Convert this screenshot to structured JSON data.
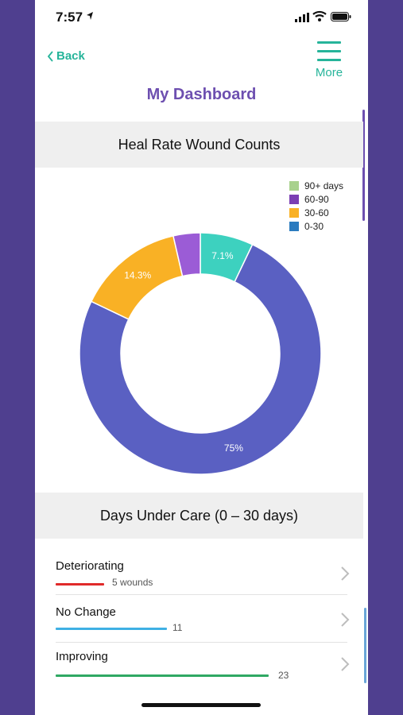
{
  "status_bar": {
    "time": "7:57"
  },
  "nav": {
    "back_label": "Back",
    "more_label": "More"
  },
  "page": {
    "title": "My Dashboard"
  },
  "heal_rate": {
    "header": "Heal Rate Wound Counts",
    "legend": [
      {
        "label": "90+ days",
        "color": "#a8d18d"
      },
      {
        "label": "60-90",
        "color": "#7b3fb3"
      },
      {
        "label": "30-60",
        "color": "#f9b125"
      },
      {
        "label": "0-30",
        "color": "#2b7bbf"
      }
    ]
  },
  "chart_data": {
    "type": "pie",
    "title": "Heal Rate Wound Counts",
    "slices": [
      {
        "value": 7.1,
        "label": "7.1%",
        "color": "#3dd1bf"
      },
      {
        "value": 75,
        "label": "75%",
        "color": "#5a60c2"
      },
      {
        "value": 14.3,
        "label": "14.3%",
        "color": "#f9b125"
      },
      {
        "value": 3.6,
        "label": "",
        "color": "#9b5cd6"
      }
    ],
    "donut": true
  },
  "days_under_care": {
    "header": "Days Under Care (0 – 30 days)",
    "rows": [
      {
        "label": "Deteriorating",
        "count": "5 wounds",
        "value": 5,
        "color": "#e02a2a"
      },
      {
        "label": "No Change",
        "count": "11",
        "value": 11,
        "color": "#3fb0e4"
      },
      {
        "label": "Improving",
        "count": "23",
        "value": 23,
        "color": "#2fa863"
      }
    ]
  }
}
